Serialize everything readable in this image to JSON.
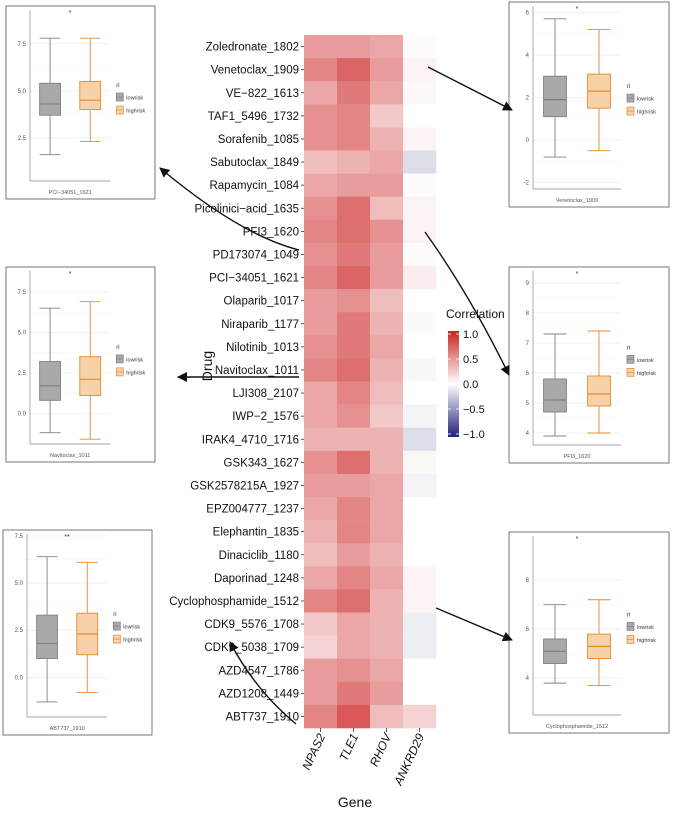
{
  "chart_data": [
    {
      "type": "heatmap",
      "ylabel": "Drug",
      "xlabel": "Gene",
      "genes": [
        "NPAS2",
        "TLE1",
        "RHOV",
        "ANKRD29"
      ],
      "drugs": [
        "Zoledronate_1802",
        "Venetoclax_1909",
        "VE−822_1613",
        "TAF1_5496_1732",
        "Sorafenib_1085",
        "Sabutoclax_1849",
        "Rapamycin_1084",
        "Picolinici−acid_1635",
        "PFI3_1620",
        "PD173074_1049",
        "PCI−34051_1621",
        "Olaparib_1017",
        "Niraparib_1177",
        "Nilotinib_1013",
        "Navitoclax_1011",
        "LJI308_2107",
        "IWP−2_1576",
        "IRAK4_4710_1716",
        "GSK343_1627",
        "GSK2578215A_1927",
        "EPZ004777_1237",
        "Elephantin_1835",
        "Dinaciclib_1180",
        "Daporinad_1248",
        "Cyclophosphamide_1512",
        "CDK9_5576_1708",
        "CDK9_5038_1709",
        "AZD4547_1786",
        "AZD1208_1449",
        "ABT737_1910"
      ],
      "values": [
        [
          0.45,
          0.45,
          0.4,
          0.02
        ],
        [
          0.55,
          0.7,
          0.45,
          0.05
        ],
        [
          0.4,
          0.6,
          0.4,
          0.03
        ],
        [
          0.5,
          0.55,
          0.25,
          0.0
        ],
        [
          0.5,
          0.55,
          0.35,
          0.05
        ],
        [
          0.3,
          0.35,
          0.4,
          -0.15
        ],
        [
          0.4,
          0.45,
          0.45,
          0.02
        ],
        [
          0.5,
          0.65,
          0.3,
          0.05
        ],
        [
          0.55,
          0.65,
          0.5,
          0.05
        ],
        [
          0.5,
          0.6,
          0.45,
          0.02
        ],
        [
          0.55,
          0.7,
          0.45,
          0.08
        ],
        [
          0.45,
          0.5,
          0.3,
          0.0
        ],
        [
          0.45,
          0.6,
          0.35,
          -0.02
        ],
        [
          0.5,
          0.6,
          0.4,
          0.0
        ],
        [
          0.55,
          0.65,
          0.35,
          -0.03
        ],
        [
          0.4,
          0.55,
          0.3,
          0.0
        ],
        [
          0.4,
          0.5,
          0.25,
          -0.05
        ],
        [
          0.35,
          0.35,
          0.35,
          -0.15
        ],
        [
          0.5,
          0.65,
          0.35,
          0.03
        ],
        [
          0.45,
          0.45,
          0.4,
          -0.05
        ],
        [
          0.4,
          0.55,
          0.4,
          0.0
        ],
        [
          0.35,
          0.55,
          0.4,
          0.0
        ],
        [
          0.3,
          0.45,
          0.35,
          0.0
        ],
        [
          0.4,
          0.55,
          0.4,
          0.05
        ],
        [
          0.55,
          0.65,
          0.35,
          0.05
        ],
        [
          0.25,
          0.4,
          0.35,
          -0.08
        ],
        [
          0.2,
          0.4,
          0.35,
          -0.08
        ],
        [
          0.45,
          0.5,
          0.4,
          0.0
        ],
        [
          0.45,
          0.6,
          0.45,
          0.0
        ],
        [
          0.55,
          0.75,
          0.3,
          0.2
        ]
      ],
      "legend": {
        "title": "Correlation",
        "ticks": [
          1.0,
          0.5,
          0.0,
          -0.5,
          -1.0
        ],
        "tick_labels": [
          "1.0",
          "0.5",
          "0.0",
          "−0.5",
          "−1.0"
        ],
        "colors": {
          "high": "#cc2222",
          "mid": "#ffffff",
          "low": "#22227a"
        }
      }
    },
    {
      "type": "boxplot",
      "id": "pci",
      "drug": "PCI−34051_1621",
      "xlabel": "PCI−34051_1621",
      "signif": "*",
      "yticks": [
        2.5,
        5.0,
        7.5
      ],
      "ytick_labels": [
        "2.5",
        "5.0",
        "7.5"
      ],
      "ylim": [
        0.2,
        9.3
      ],
      "legend_title": "ri",
      "groups": [
        {
          "name": "lowrisk",
          "min": 1.6,
          "q1": 3.7,
          "median": 4.3,
          "q3": 5.4,
          "max": 7.8,
          "color": "#808080",
          "fill": "#a9a9a9"
        },
        {
          "name": "highrisk",
          "min": 2.3,
          "q1": 4.0,
          "median": 4.5,
          "q3": 5.5,
          "max": 7.8,
          "color": "#e08b2e",
          "fill": "#f7d2a8"
        }
      ]
    },
    {
      "type": "boxplot",
      "id": "navi",
      "drug": "Navitoclax_1011",
      "xlabel": "Navitoclax_1011",
      "signif": "*",
      "yticks": [
        0.0,
        2.5,
        5.0,
        7.5
      ],
      "ytick_labels": [
        "0.0",
        "2.5",
        "5.0",
        "7.5"
      ],
      "ylim": [
        -1.9,
        8.8
      ],
      "legend_title": "ri",
      "groups": [
        {
          "name": "lowrisk",
          "min": -1.2,
          "q1": 0.8,
          "median": 1.7,
          "q3": 3.2,
          "max": 6.5,
          "color": "#808080",
          "fill": "#a9a9a9"
        },
        {
          "name": "highrisk",
          "min": -1.6,
          "q1": 1.1,
          "median": 2.1,
          "q3": 3.5,
          "max": 6.9,
          "color": "#e08b2e",
          "fill": "#f7d2a8"
        }
      ]
    },
    {
      "type": "boxplot",
      "id": "abt",
      "drug": "ABT737_1910",
      "xlabel": "ABT737_1910",
      "signif": "**",
      "yticks": [
        0.0,
        2.5,
        5.0,
        7.5
      ],
      "ytick_labels": [
        "0.0",
        "2.5",
        "5.0",
        "7.5"
      ],
      "ylim": [
        -2.1,
        7.6
      ],
      "legend_title": "ri",
      "groups": [
        {
          "name": "lowrisk",
          "min": -1.3,
          "q1": 1.0,
          "median": 1.8,
          "q3": 3.3,
          "max": 6.4,
          "color": "#808080",
          "fill": "#a9a9a9"
        },
        {
          "name": "highrisk",
          "min": -0.8,
          "q1": 1.2,
          "median": 2.3,
          "q3": 3.4,
          "max": 6.1,
          "color": "#e08b2e",
          "fill": "#f7d2a8"
        }
      ]
    },
    {
      "type": "boxplot",
      "id": "vene",
      "drug": "Venetoclax_1909",
      "xlabel": "Venetoclax_1909",
      "signif": "*",
      "yticks": [
        -2,
        0,
        2,
        4,
        6
      ],
      "ytick_labels": [
        "-2",
        "0",
        "2",
        "4",
        "6"
      ],
      "ylim": [
        -2.3,
        6.3
      ],
      "legend_title": "ri",
      "groups": [
        {
          "name": "lowrisk",
          "min": -0.8,
          "q1": 1.1,
          "median": 1.9,
          "q3": 3.0,
          "max": 5.7,
          "color": "#808080",
          "fill": "#a9a9a9"
        },
        {
          "name": "highrisk",
          "min": -0.5,
          "q1": 1.5,
          "median": 2.3,
          "q3": 3.1,
          "max": 5.2,
          "color": "#e08b2e",
          "fill": "#f7d2a8"
        }
      ]
    },
    {
      "type": "boxplot",
      "id": "pfi",
      "drug": "PFI3_1620",
      "xlabel": "PFI3_1620",
      "signif": "*",
      "yticks": [
        4,
        5,
        6,
        7,
        8,
        9
      ],
      "ytick_labels": [
        "4",
        "5",
        "6",
        "7",
        "8",
        "9"
      ],
      "ylim": [
        3.6,
        9.4
      ],
      "legend_title": "ri",
      "groups": [
        {
          "name": "lowrisk",
          "min": 3.9,
          "q1": 4.7,
          "median": 5.1,
          "q3": 5.8,
          "max": 7.3,
          "color": "#808080",
          "fill": "#a9a9a9"
        },
        {
          "name": "highrisk",
          "min": 4.0,
          "q1": 4.9,
          "median": 5.3,
          "q3": 5.9,
          "max": 7.4,
          "color": "#e08b2e",
          "fill": "#f7d2a8"
        }
      ]
    },
    {
      "type": "boxplot",
      "id": "cyc",
      "drug": "Cyclophosphamide_1512",
      "xlabel": "Cyclophosphamide_1512",
      "signif": "*",
      "yticks": [
        4,
        6,
        8
      ],
      "ytick_labels": [
        "4",
        "6",
        "8"
      ],
      "ylim": [
        2.5,
        9.8
      ],
      "legend_title": "ri",
      "groups": [
        {
          "name": "lowrisk",
          "min": 3.8,
          "q1": 4.6,
          "median": 5.1,
          "q3": 5.6,
          "max": 7.0,
          "color": "#808080",
          "fill": "#a9a9a9"
        },
        {
          "name": "highrisk",
          "min": 3.7,
          "q1": 4.8,
          "median": 5.3,
          "q3": 5.8,
          "max": 7.2,
          "color": "#e08b2e",
          "fill": "#f7d2a8"
        }
      ]
    }
  ]
}
